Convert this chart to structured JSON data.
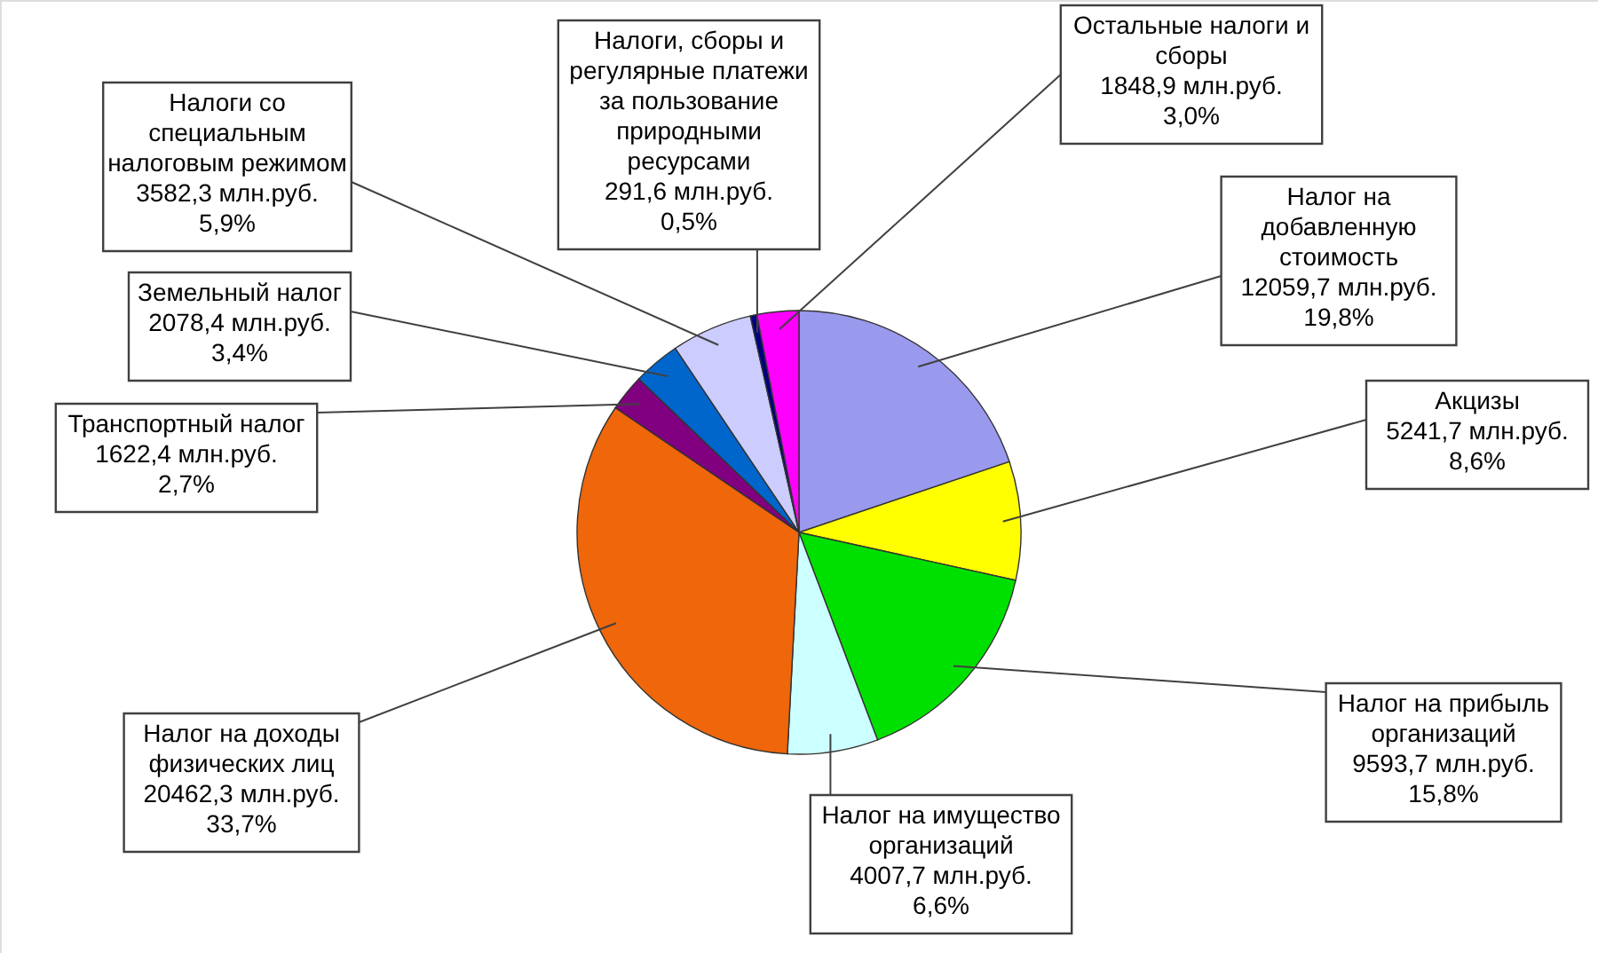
{
  "chart_data": {
    "type": "pie",
    "categories": [
      "Налог на добавленную стоимость",
      "Акцизы",
      "Налог на прибыль организаций",
      "Налог на имущество организаций",
      "Налог на доходы физических лиц",
      "Транспортный налог",
      "Земельный налог",
      "Налоги со специальным налоговым режимом",
      "Налоги, сборы и регулярные платежи за пользование природными ресурсами",
      "Остальные налоги и сборы"
    ],
    "values": [
      12059.7,
      5241.7,
      9593.7,
      4007.7,
      20462.3,
      1622.4,
      2078.4,
      3582.3,
      291.6,
      1848.9
    ],
    "value_labels": [
      "12059,7 млн.руб. 19,8%",
      "5241,7 млн.руб. 8,6%",
      "9593,7 млн.руб. 15,8%",
      "4007,7 млн.руб. 6,6%",
      "20462,3 млн.руб. 33,7%",
      "1622,4 млн.руб. 2,7%",
      "2078,4 млн.руб. 3,4%",
      "3582,3 млн.руб. 5,9%",
      "291,6 млн.руб. 0,5%",
      "1848,9 млн.руб. 3,0%"
    ],
    "colors": [
      "#9999ee",
      "#ffff00",
      "#00e000",
      "#ccffff",
      "#f0660a",
      "#800080",
      "#0066cc",
      "#ccccff",
      "#000080",
      "#ff00ff"
    ]
  }
}
